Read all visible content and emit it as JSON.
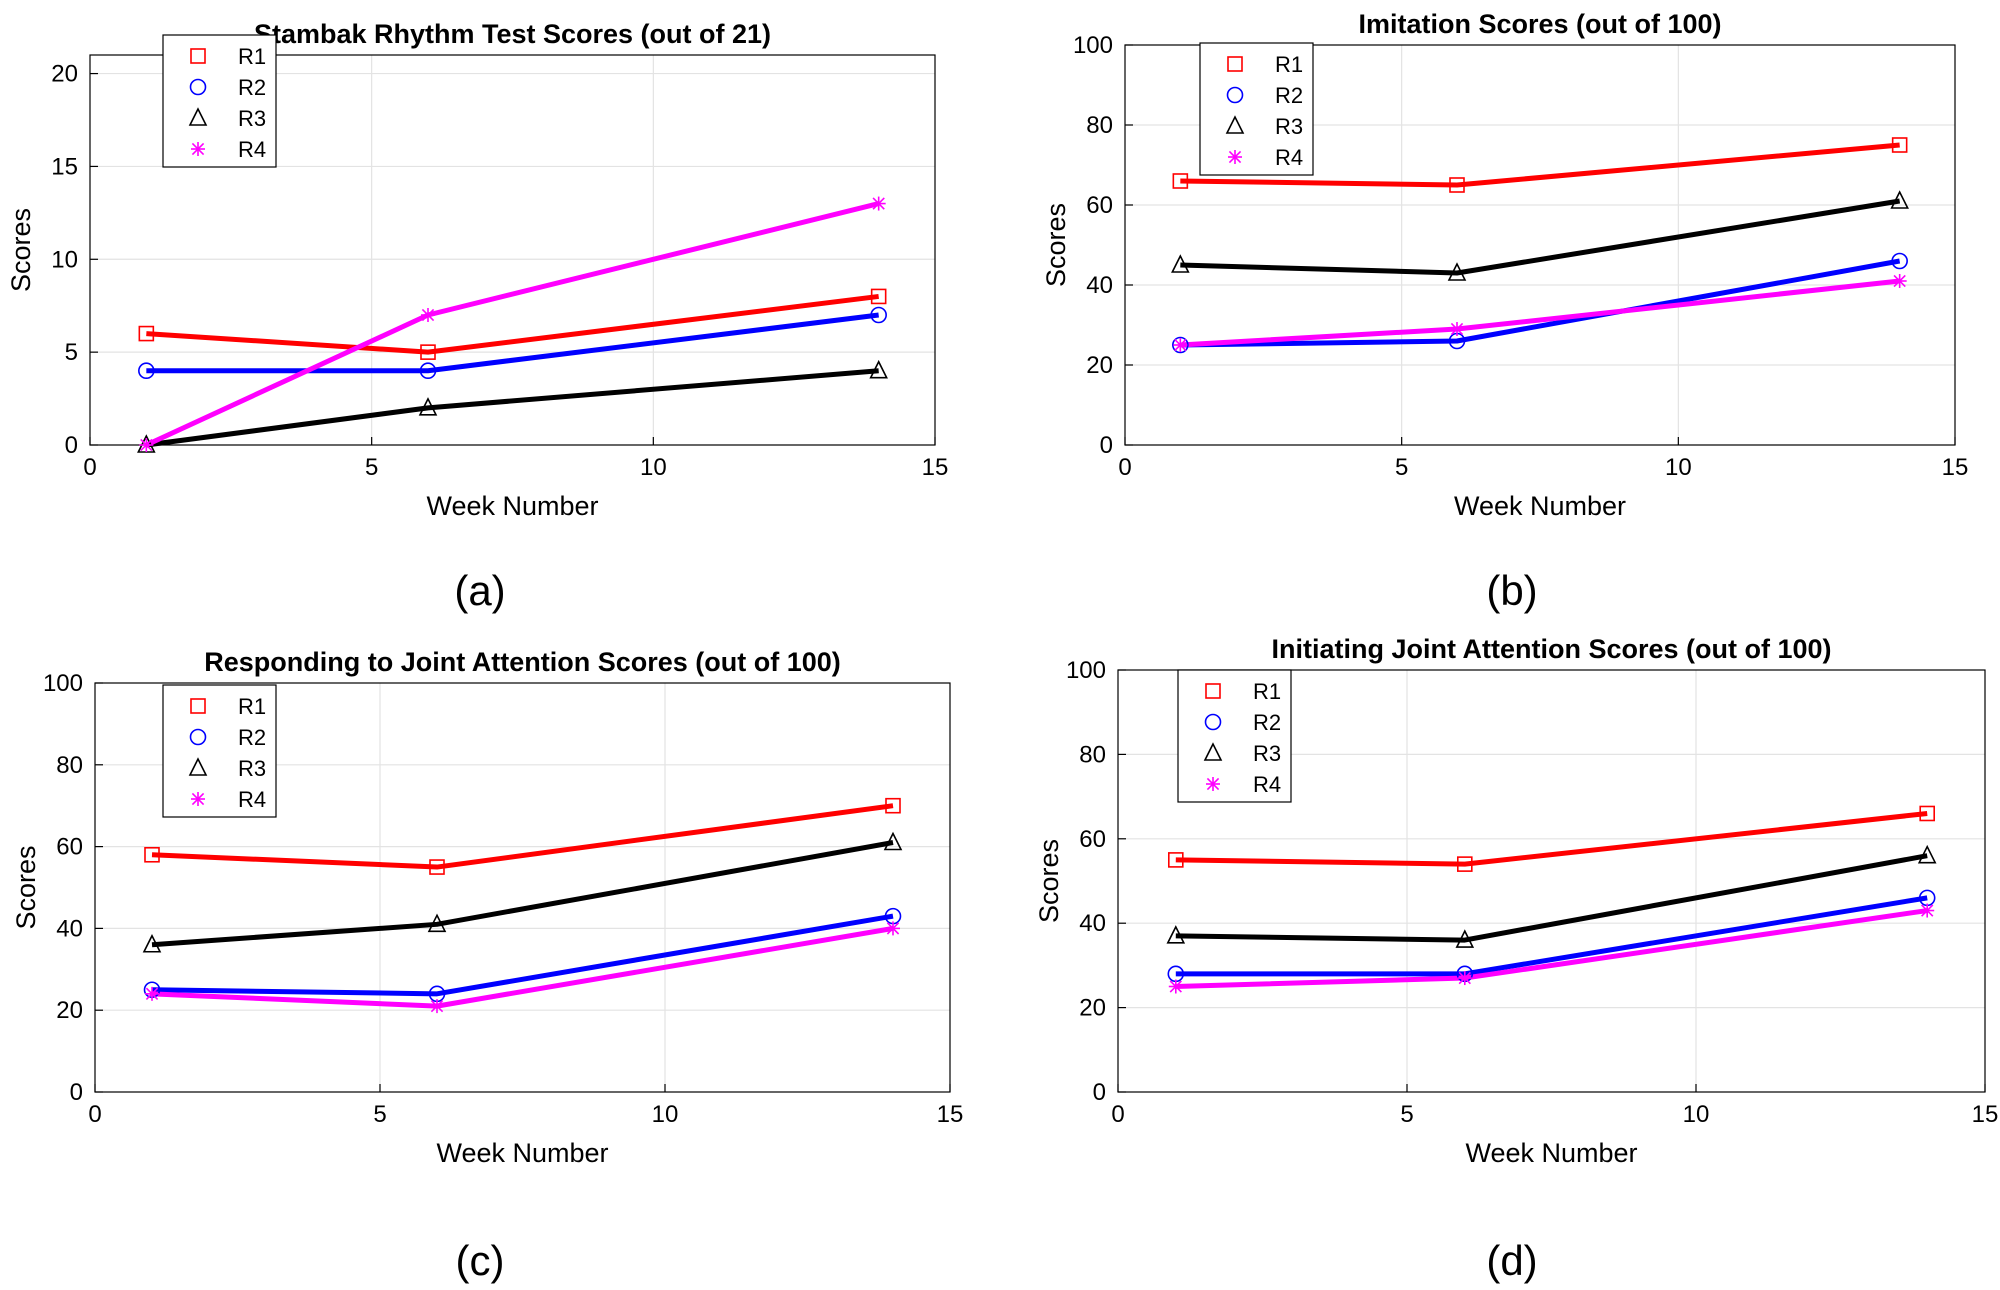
{
  "series_styles": [
    {
      "name": "R1",
      "color": "#ff0000",
      "marker": "square"
    },
    {
      "name": "R2",
      "color": "#0000ff",
      "marker": "circle"
    },
    {
      "name": "R3",
      "color": "#000000",
      "marker": "triangle"
    },
    {
      "name": "R4",
      "color": "#ff00ff",
      "marker": "asterisk"
    }
  ],
  "chart_data": [
    {
      "type": "line",
      "panel": "(a)",
      "title": "Stambak Rhythm Test Scores (out of 21)",
      "xlabel": "Week Number",
      "ylabel": "Scores",
      "xlim": [
        0,
        15
      ],
      "ylim": [
        0,
        21
      ],
      "xticks": [
        0,
        5,
        10,
        15
      ],
      "yticks": [
        0,
        5,
        10,
        15,
        20
      ],
      "grid": true,
      "legend": "top-left",
      "x": [
        1,
        6,
        14
      ],
      "series": [
        {
          "name": "R1",
          "values": [
            6,
            5,
            8
          ]
        },
        {
          "name": "R2",
          "values": [
            4,
            4,
            7
          ]
        },
        {
          "name": "R3",
          "values": [
            0,
            2,
            4
          ]
        },
        {
          "name": "R4",
          "values": [
            0,
            7,
            13
          ]
        }
      ]
    },
    {
      "type": "line",
      "panel": "(b)",
      "title": "Imitation Scores (out of 100)",
      "xlabel": "Week Number",
      "ylabel": "Scores",
      "xlim": [
        0,
        15
      ],
      "ylim": [
        0,
        100
      ],
      "xticks": [
        0,
        5,
        10,
        15
      ],
      "yticks": [
        0,
        20,
        40,
        60,
        80,
        100
      ],
      "grid": true,
      "legend": "top-left",
      "x": [
        1,
        6,
        14
      ],
      "series": [
        {
          "name": "R1",
          "values": [
            66,
            65,
            75
          ]
        },
        {
          "name": "R2",
          "values": [
            25,
            26,
            46
          ]
        },
        {
          "name": "R3",
          "values": [
            45,
            43,
            61
          ]
        },
        {
          "name": "R4",
          "values": [
            25,
            29,
            41
          ]
        }
      ]
    },
    {
      "type": "line",
      "panel": "(c)",
      "title": "Responding to Joint Attention Scores (out of 100)",
      "xlabel": "Week Number",
      "ylabel": "Scores",
      "xlim": [
        0,
        15
      ],
      "ylim": [
        0,
        100
      ],
      "xticks": [
        0,
        5,
        10,
        15
      ],
      "yticks": [
        0,
        20,
        40,
        60,
        80,
        100
      ],
      "grid": true,
      "legend": "top-left",
      "x": [
        1,
        6,
        14
      ],
      "series": [
        {
          "name": "R1",
          "values": [
            58,
            55,
            70
          ]
        },
        {
          "name": "R2",
          "values": [
            25,
            24,
            43
          ]
        },
        {
          "name": "R3",
          "values": [
            36,
            41,
            61
          ]
        },
        {
          "name": "R4",
          "values": [
            24,
            21,
            40
          ]
        }
      ]
    },
    {
      "type": "line",
      "panel": "(d)",
      "title": "Initiating Joint Attention Scores (out of 100)",
      "xlabel": "Week Number",
      "ylabel": "Scores",
      "xlim": [
        0,
        15
      ],
      "ylim": [
        0,
        100
      ],
      "xticks": [
        0,
        5,
        10,
        15
      ],
      "yticks": [
        0,
        20,
        40,
        60,
        80,
        100
      ],
      "grid": true,
      "legend": "top-left",
      "x": [
        1,
        6,
        14
      ],
      "series": [
        {
          "name": "R1",
          "values": [
            55,
            54,
            66
          ]
        },
        {
          "name": "R2",
          "values": [
            28,
            28,
            46
          ]
        },
        {
          "name": "R3",
          "values": [
            37,
            36,
            56
          ]
        },
        {
          "name": "R4",
          "values": [
            25,
            27,
            43
          ]
        }
      ]
    }
  ]
}
